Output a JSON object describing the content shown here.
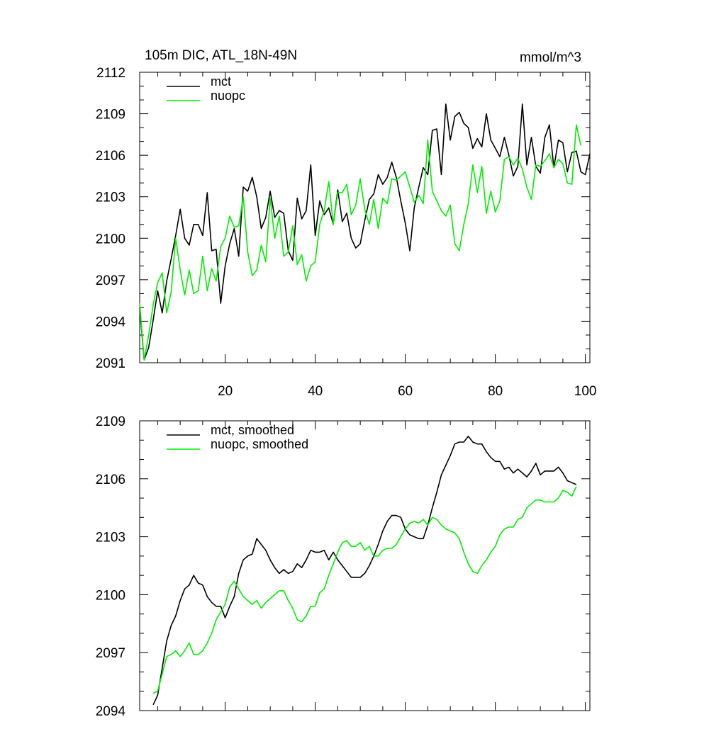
{
  "chart_data": [
    {
      "type": "line",
      "title": "105m DIC, ATL_18N-49N",
      "units": "mmol/m^3",
      "xlabel": "",
      "ylabel": "",
      "xlim": [
        1,
        101
      ],
      "ylim": [
        2091,
        2112
      ],
      "xticks": [
        20,
        40,
        60,
        80,
        100
      ],
      "yticks": [
        2091,
        2094,
        2097,
        2100,
        2103,
        2106,
        2109,
        2112
      ],
      "grid": false,
      "legend_position": "top-left",
      "x_start": 1,
      "series": [
        {
          "name": "mct",
          "color": "#000000",
          "values": [
            2095.0,
            2091.2,
            2092.1,
            2094.1,
            2096.2,
            2094.6,
            2096.9,
            2098.5,
            2100.2,
            2102.1,
            2100.0,
            2099.5,
            2101.0,
            2101.0,
            2100.2,
            2103.3,
            2099.1,
            2099.2,
            2095.3,
            2098.0,
            2099.6,
            2100.7,
            2098.7,
            2103.7,
            2103.4,
            2104.4,
            2103.0,
            2100.7,
            2101.5,
            2103.4,
            2101.5,
            2102.0,
            2101.8,
            2099.1,
            2098.4,
            2102.9,
            2101.4,
            2102.0,
            2105.3,
            2100.2,
            2102.7,
            2101.7,
            2102.2,
            2101.0,
            2103.5,
            2101.2,
            2101.8,
            2100.0,
            2099.3,
            2099.6,
            2101.3,
            2102.8,
            2103.2,
            2104.6,
            2103.9,
            2104.4,
            2105.5,
            2104.4,
            2102.7,
            2101.1,
            2099.1,
            2102.2,
            2103.7,
            2105.1,
            2104.6,
            2107.8,
            2107.9,
            2104.6,
            2109.7,
            2107.1,
            2108.8,
            2109.1,
            2108.3,
            2108.0,
            2106.5,
            2107.2,
            2106.6,
            2109.0,
            2107.1,
            2106.5,
            2105.9,
            2107.3,
            2106.0,
            2104.5,
            2105.2,
            2109.7,
            2105.3,
            2107.3,
            2105.2,
            2104.7,
            2107.3,
            2108.2,
            2105.1,
            2107.1,
            2106.9,
            2104.8,
            2106.2,
            2106.3,
            2104.8,
            2104.6,
            2106.1
          ]
        },
        {
          "name": "nuopc",
          "color": "#00ee00",
          "values": [
            2095.3,
            2091.2,
            2093.0,
            2095.2,
            2096.8,
            2097.5,
            2094.6,
            2096.1,
            2100.0,
            2097.7,
            2095.9,
            2097.7,
            2096.0,
            2096.2,
            2098.7,
            2096.2,
            2097.8,
            2096.9,
            2099.4,
            2100.0,
            2101.6,
            2100.8,
            2100.9,
            2103.0,
            2099.0,
            2097.3,
            2097.7,
            2099.5,
            2098.3,
            2102.9,
            2100.0,
            2101.6,
            2098.7,
            2099.0,
            2100.9,
            2098.1,
            2098.8,
            2096.9,
            2098.0,
            2098.3,
            2101.0,
            2102.0,
            2104.1,
            2101.0,
            2103.3,
            2103.3,
            2103.9,
            2101.7,
            2102.4,
            2104.3,
            2102.1,
            2101.0,
            2102.8,
            2100.7,
            2102.9,
            2102.5,
            2104.3,
            2104.2,
            2104.5,
            2104.8,
            2103.7,
            2102.6,
            2103.1,
            2102.5,
            2107.1,
            2103.4,
            2102.7,
            2102.0,
            2101.6,
            2102.4,
            2099.6,
            2099.1,
            2101.0,
            2102.5,
            2105.3,
            2103.3,
            2105.2,
            2101.8,
            2103.4,
            2101.9,
            2102.7,
            2105.7,
            2105.9,
            2105.3,
            2105.8,
            2105.0,
            2103.7,
            2102.8,
            2105.3,
            2105.2,
            2105.6,
            2106.1,
            2105.1,
            2105.7,
            2105.4,
            2104.0,
            2103.9,
            2108.2,
            2106.7
          ]
        }
      ]
    },
    {
      "type": "line",
      "title": "",
      "xlabel": "",
      "ylabel": "",
      "xlim": [
        1,
        101
      ],
      "ylim": [
        2094,
        2109
      ],
      "xticks": [
        20,
        40,
        60,
        80,
        100
      ],
      "yticks": [
        2094,
        2097,
        2100,
        2103,
        2106,
        2109
      ],
      "grid": false,
      "legend_position": "top-left",
      "x_start": 4,
      "series": [
        {
          "name": "mct, smoothed",
          "color": "#000000",
          "values": [
            2094.3,
            2094.8,
            2096.2,
            2097.6,
            2098.4,
            2098.9,
            2099.7,
            2100.3,
            2100.5,
            2101.0,
            2100.6,
            2100.5,
            2099.9,
            2099.6,
            2099.4,
            2099.4,
            2098.8,
            2099.4,
            2099.9,
            2101.1,
            2101.8,
            2102.0,
            2102.1,
            2102.9,
            2102.6,
            2102.3,
            2101.8,
            2101.4,
            2101.1,
            2101.3,
            2101.1,
            2101.2,
            2101.6,
            2101.4,
            2101.8,
            2102.3,
            2102.2,
            2102.2,
            2102.3,
            2101.8,
            2102.2,
            2101.8,
            2101.5,
            2101.2,
            2100.9,
            2100.9,
            2100.9,
            2101.1,
            2101.5,
            2102.0,
            2102.6,
            2103.3,
            2103.8,
            2104.1,
            2104.1,
            2104.0,
            2103.4,
            2103.1,
            2103.0,
            2102.9,
            2102.9,
            2103.6,
            2104.5,
            2105.3,
            2106.2,
            2106.7,
            2107.2,
            2107.8,
            2107.9,
            2107.9,
            2108.2,
            2107.9,
            2107.8,
            2107.8,
            2107.4,
            2107.1,
            2106.9,
            2106.9,
            2106.5,
            2106.6,
            2106.3,
            2106.5,
            2106.3,
            2106.1,
            2106.4,
            2106.8,
            2106.2,
            2106.4,
            2106.4,
            2106.4,
            2106.6,
            2106.3,
            2105.9,
            2105.8,
            2105.7
          ]
        },
        {
          "name": "nuopc, smoothed",
          "color": "#00ee00",
          "values": [
            2094.9,
            2095.0,
            2095.9,
            2096.8,
            2096.9,
            2097.1,
            2096.8,
            2097.1,
            2097.5,
            2096.9,
            2096.9,
            2097.1,
            2097.5,
            2098.0,
            2098.7,
            2099.1,
            2099.5,
            2100.4,
            2100.7,
            2100.3,
            2099.9,
            2099.7,
            2099.5,
            2099.7,
            2099.3,
            2099.6,
            2099.8,
            2100.0,
            2100.2,
            2100.2,
            2099.7,
            2099.3,
            2098.7,
            2098.6,
            2098.9,
            2099.4,
            2099.4,
            2100.1,
            2100.3,
            2101.0,
            2101.6,
            2102.2,
            2102.7,
            2102.8,
            2102.5,
            2102.5,
            2102.7,
            2102.3,
            2102.5,
            2102.0,
            2102.0,
            2102.3,
            2102.4,
            2102.4,
            2102.6,
            2103.0,
            2103.4,
            2103.7,
            2103.8,
            2103.7,
            2103.9,
            2103.6,
            2104.0,
            2103.9,
            2103.6,
            2103.4,
            2103.3,
            2103.2,
            2102.9,
            2102.2,
            2101.6,
            2101.2,
            2101.1,
            2101.5,
            2101.8,
            2102.2,
            2102.5,
            2103.1,
            2103.4,
            2103.5,
            2103.5,
            2103.9,
            2104.0,
            2104.5,
            2104.7,
            2104.9,
            2104.9,
            2104.8,
            2104.8,
            2104.8,
            2105.0,
            2105.4,
            2105.3,
            2105.1,
            2105.6
          ]
        }
      ]
    }
  ]
}
